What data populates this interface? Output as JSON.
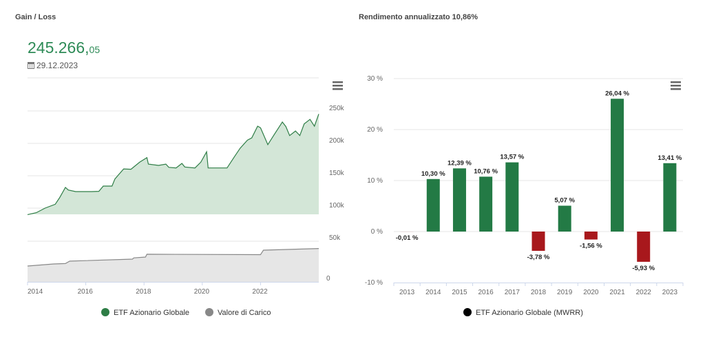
{
  "left": {
    "title": "Gain / Loss",
    "value_int": "245.266,",
    "value_dec": "05",
    "date": "29.12.2023",
    "icons": {
      "date": "calendar-icon",
      "menu": "hamburger-menu-icon"
    }
  },
  "right": {
    "title": "Rendimento annualizzato 10,86%",
    "icons": {
      "menu": "hamburger-menu-icon"
    }
  },
  "chart_data": [
    {
      "type": "area",
      "x_ticks": [
        "2014",
        "2016",
        "2018",
        "2020",
        "2022"
      ],
      "y_ticks_upper": [
        "250k",
        "200k",
        "150k",
        "100k"
      ],
      "y_ticks_lower": [
        "50k",
        "0"
      ],
      "xlim": [
        2014,
        2024
      ],
      "grid": true,
      "legend_placement": "bottom",
      "series": [
        {
          "name": "ETF Azionario Globale",
          "color": "#2e7d46",
          "fill": "#d3e6d7",
          "x": [
            2014.0,
            2014.3,
            2014.6,
            2014.95,
            2015.1,
            2015.3,
            2015.4,
            2015.65,
            2016.2,
            2016.45,
            2016.6,
            2016.9,
            2017.0,
            2017.3,
            2017.55,
            2017.85,
            2018.1,
            2018.15,
            2018.5,
            2018.75,
            2018.85,
            2019.1,
            2019.3,
            2019.4,
            2019.75,
            2019.95,
            2020.15,
            2020.2,
            2020.6,
            2020.85,
            2021.1,
            2021.3,
            2021.55,
            2021.7,
            2021.9,
            2022.0,
            2022.25,
            2022.45,
            2022.75,
            2022.87,
            2023.0,
            2023.2,
            2023.35,
            2023.5,
            2023.7,
            2023.85,
            2024.0
          ],
          "y": [
            90,
            93,
            100,
            106,
            116,
            132,
            128,
            125.5,
            125.5,
            126,
            134,
            134,
            145,
            160.5,
            160,
            171,
            178,
            168,
            166,
            168,
            163,
            162,
            169,
            163.5,
            162,
            171,
            187,
            162,
            162,
            162,
            179,
            192.5,
            205,
            208.5,
            226.5,
            224,
            198,
            212,
            233,
            226,
            212,
            219,
            212,
            230,
            237,
            226.5,
            245.3
          ]
        },
        {
          "name": "Valore di Carico",
          "color": "#888888",
          "fill": "#e6e6e6",
          "x": [
            2014.0,
            2014.9,
            2015.3,
            2015.45,
            2017.6,
            2017.65,
            2018.05,
            2018.1,
            2022.0,
            2022.1,
            2024.0
          ],
          "y": [
            19.5,
            22,
            22.5,
            25.5,
            28,
            29.5,
            30.5,
            34,
            33.5,
            39,
            41
          ]
        }
      ]
    },
    {
      "type": "bar",
      "categories": [
        "2013",
        "2014",
        "2015",
        "2016",
        "2017",
        "2018",
        "2019",
        "2020",
        "2021",
        "2022",
        "2023"
      ],
      "values": [
        -0.01,
        10.3,
        12.39,
        10.76,
        13.57,
        -3.78,
        5.07,
        -1.56,
        26.04,
        -5.93,
        13.41
      ],
      "data_labels": [
        "-0,01 %",
        "10,30 %",
        "12,39 %",
        "10,76 %",
        "13,57 %",
        "-3,78 %",
        "5,07 %",
        "-1,56 %",
        "26,04 %",
        "-5,93 %",
        "13,41 %"
      ],
      "y_ticks": [
        "30 %",
        "20 %",
        "10 %",
        "0 %",
        "-10 %"
      ],
      "ylim": [
        -10,
        30
      ],
      "grid": true,
      "positive_color": "#237a45",
      "negative_color": "#a8181c",
      "legend_placement": "bottom",
      "series": [
        {
          "name": "ETF Azionario Globale (MWRR)",
          "color": "#000000"
        }
      ]
    }
  ]
}
